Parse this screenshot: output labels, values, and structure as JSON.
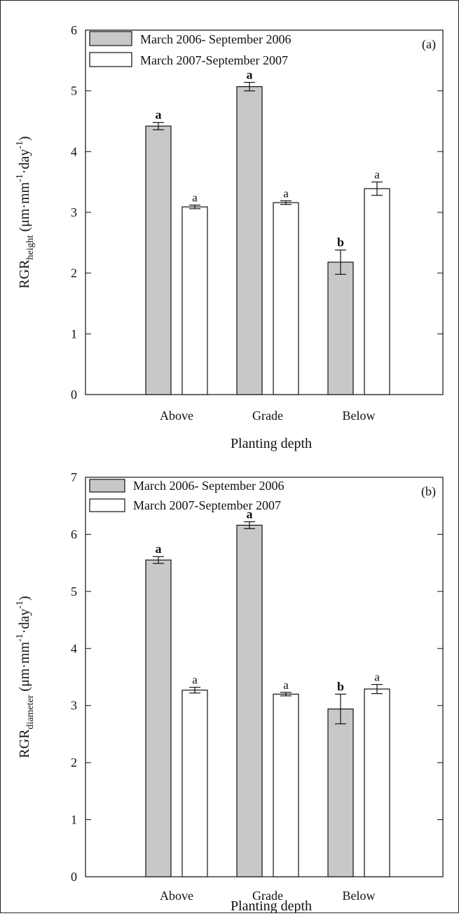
{
  "chart_data": [
    {
      "type": "bar",
      "panel_label": "(a)",
      "categories": [
        "Above",
        "Grade",
        "Below"
      ],
      "xlabel": "Planting depth",
      "ylabel": {
        "main": "RGR",
        "subscript": "height",
        "units_prefix": " (μm·mm",
        "exp1": "-1",
        "units_mid": "·day",
        "exp2": "-1",
        "units_suffix": ")"
      },
      "ylim": [
        0,
        6
      ],
      "yticks": [
        0,
        1,
        2,
        3,
        4,
        5,
        6
      ],
      "legend_position": "top-left",
      "series": [
        {
          "name": "March 2006- September 2006",
          "color": "#c8c8c8",
          "values": [
            4.42,
            5.07,
            2.18
          ],
          "errors": [
            0.06,
            0.07,
            0.2
          ],
          "letters": [
            "a",
            "a",
            "b"
          ],
          "letter_style": "bold"
        },
        {
          "name": "March 2007-September 2007",
          "color": "#ffffff",
          "values": [
            3.09,
            3.16,
            3.39
          ],
          "errors": [
            0.03,
            0.03,
            0.11
          ],
          "letters": [
            "a",
            "a",
            "a"
          ],
          "letter_style": "normal"
        }
      ]
    },
    {
      "type": "bar",
      "panel_label": "(b)",
      "categories": [
        "Above",
        "Grade",
        "Below"
      ],
      "xlabel": "Planting depth",
      "ylabel": {
        "main": "RGR",
        "subscript": "diameter",
        "units_prefix": " (μm·mm",
        "exp1": "-1",
        "units_mid": "·day",
        "exp2": "-1",
        "units_suffix": ")"
      },
      "ylim": [
        0,
        7
      ],
      "yticks": [
        0,
        1,
        2,
        3,
        4,
        5,
        6,
        7
      ],
      "legend_position": "top-left",
      "series": [
        {
          "name": "March 2006- September 2006",
          "color": "#c8c8c8",
          "values": [
            5.55,
            6.16,
            2.94
          ],
          "errors": [
            0.06,
            0.06,
            0.26
          ],
          "letters": [
            "a",
            "a",
            "b"
          ],
          "letter_style": "bold"
        },
        {
          "name": "March 2007-September 2007",
          "color": "#ffffff",
          "values": [
            3.27,
            3.2,
            3.29
          ],
          "errors": [
            0.05,
            0.03,
            0.08
          ],
          "letters": [
            "a",
            "a",
            "a"
          ],
          "letter_style": "normal"
        }
      ]
    }
  ]
}
